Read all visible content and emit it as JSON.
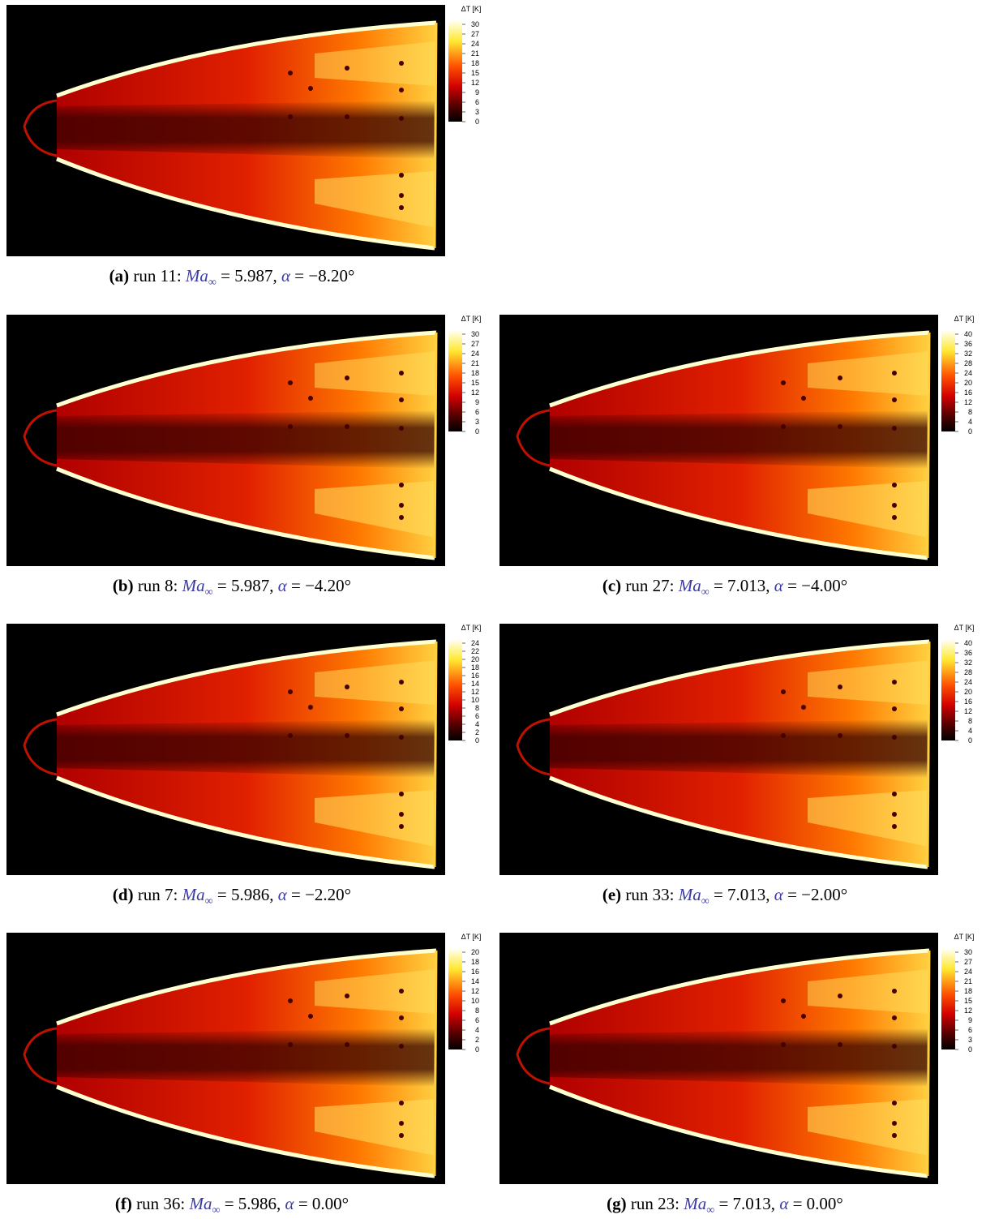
{
  "panels": [
    {
      "label": "(a)",
      "run": "run 11:",
      "ma_symbol": "Ma",
      "ma_subscript": "∞",
      "ma_value": "= 5.987,",
      "alpha_symbol": "α",
      "alpha_value": "= −8.20°",
      "colorbar": {
        "title": "ΔT [K]",
        "ticks": [
          30,
          27,
          24,
          21,
          18,
          15,
          12,
          9,
          6,
          3,
          0
        ]
      }
    },
    {
      "label": "(b)",
      "run": "run 8:",
      "ma_symbol": "Ma",
      "ma_subscript": "∞",
      "ma_value": "= 5.987,",
      "alpha_symbol": "α",
      "alpha_value": "= −4.20°",
      "colorbar": {
        "title": "ΔT [K]",
        "ticks": [
          30,
          27,
          24,
          21,
          18,
          15,
          12,
          9,
          6,
          3,
          0
        ]
      }
    },
    {
      "label": "(c)",
      "run": "run 27:",
      "ma_symbol": "Ma",
      "ma_subscript": "∞",
      "ma_value": "= 7.013,",
      "alpha_symbol": "α",
      "alpha_value": "= −4.00°",
      "colorbar": {
        "title": "ΔT [K]",
        "ticks": [
          40,
          36,
          32,
          28,
          24,
          20,
          16,
          12,
          8,
          4,
          0
        ]
      }
    },
    {
      "label": "(d)",
      "run": "run 7:",
      "ma_symbol": "Ma",
      "ma_subscript": "∞",
      "ma_value": "= 5.986,",
      "alpha_symbol": "α",
      "alpha_value": "= −2.20°",
      "colorbar": {
        "title": "ΔT [K]",
        "ticks": [
          24,
          22,
          20,
          18,
          16,
          14,
          12,
          10,
          8,
          6,
          4,
          2,
          0
        ]
      }
    },
    {
      "label": "(e)",
      "run": "run 33:",
      "ma_symbol": "Ma",
      "ma_subscript": "∞",
      "ma_value": "= 7.013,",
      "alpha_symbol": "α",
      "alpha_value": "= −2.00°",
      "colorbar": {
        "title": "ΔT [K]",
        "ticks": [
          40,
          36,
          32,
          28,
          24,
          20,
          16,
          12,
          8,
          4,
          0
        ]
      }
    },
    {
      "label": "(f)",
      "run": "run 36:",
      "ma_symbol": "Ma",
      "ma_subscript": "∞",
      "ma_value": "= 5.986,",
      "alpha_symbol": "α",
      "alpha_value": "= 0.00°",
      "colorbar": {
        "title": "ΔT [K]",
        "ticks": [
          20,
          18,
          16,
          14,
          12,
          10,
          8,
          6,
          4,
          2,
          0
        ]
      }
    },
    {
      "label": "(g)",
      "run": "run 23:",
      "ma_symbol": "Ma",
      "ma_subscript": "∞",
      "ma_value": "= 7.013,",
      "alpha_symbol": "α",
      "alpha_value": "= 0.00°",
      "colorbar": {
        "title": "ΔT [K]",
        "ticks": [
          30,
          27,
          24,
          21,
          18,
          15,
          12,
          9,
          6,
          3,
          0
        ]
      }
    }
  ]
}
